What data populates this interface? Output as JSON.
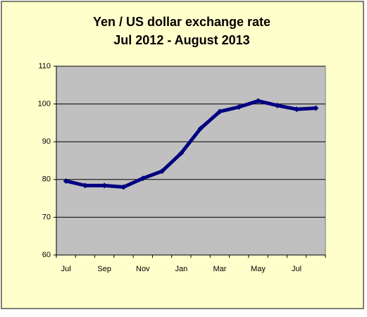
{
  "chart_data": {
    "type": "line",
    "title": "Yen / US dollar exchange rate",
    "subtitle": "Jul 2012 - August 2013",
    "categories": [
      "Jul",
      null,
      "Sep",
      null,
      "Nov",
      null,
      "Jan",
      null,
      "Mar",
      null,
      "May",
      null,
      "Jul",
      null
    ],
    "series": [
      {
        "name": "Yen / US dollar",
        "color": "#000080",
        "values": [
          79.6,
          78.4,
          78.4,
          78.0,
          80.3,
          82.2,
          87.0,
          93.5,
          98.0,
          99.2,
          100.8,
          99.6,
          98.6,
          98.9
        ]
      }
    ],
    "ylim": [
      60,
      110
    ],
    "yticks": [
      60,
      70,
      80,
      90,
      100,
      110
    ],
    "grid": true
  }
}
